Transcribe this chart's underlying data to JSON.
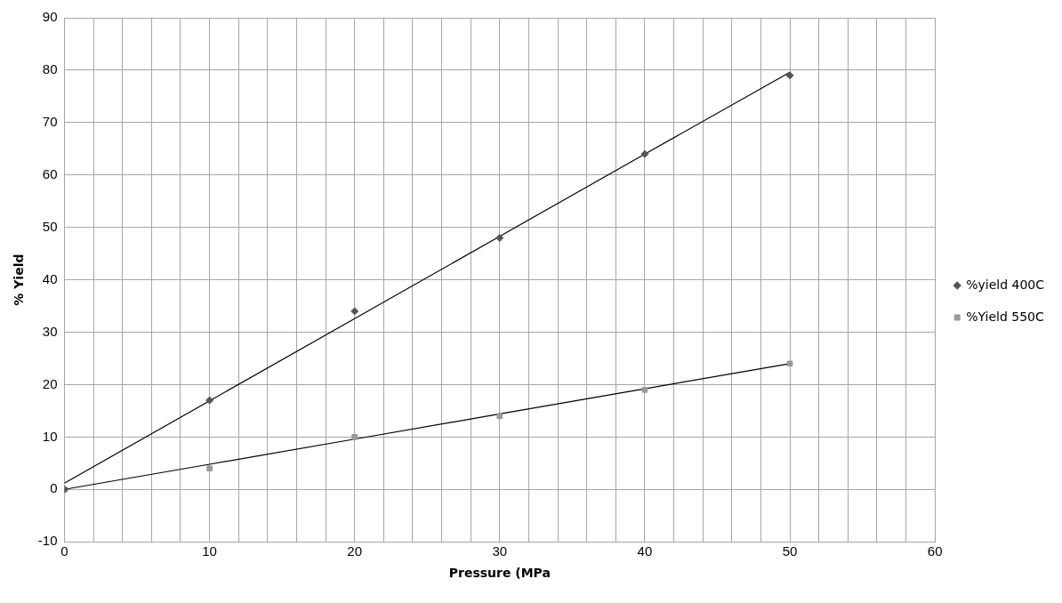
{
  "chart_data": {
    "type": "scatter",
    "xlabel": "Pressure (MPa",
    "ylabel": "% Yield",
    "x": [
      0,
      10,
      20,
      30,
      40,
      50
    ],
    "series": [
      {
        "name": "%yield 400C",
        "color": "#555555",
        "marker": "diamond",
        "values": [
          0,
          17,
          34,
          48,
          64,
          79
        ]
      },
      {
        "name": "%Yield 550C",
        "color": "#999999",
        "marker": "square",
        "values": [
          0,
          4,
          10,
          14,
          19,
          24
        ]
      },
      {
        "type": "line",
        "color": "#000000",
        "marker": "none",
        "line_style": "solid",
        "values": [
          1.2,
          16.9,
          32.6,
          48.3,
          64,
          79.6
        ]
      },
      {
        "type": "line",
        "color": "#000000",
        "marker": "none",
        "line_style": "solid",
        "values": [
          0,
          4.8,
          9.6,
          14.4,
          19.2,
          24
        ]
      }
    ],
    "xlim": [
      0,
      60
    ],
    "ylim": [
      -10,
      90
    ],
    "xticks": [
      0,
      {
        "value": 2,
        "label": null
      },
      {
        "value": 4,
        "label": null
      },
      {
        "value": 6,
        "label": null
      },
      {
        "value": 8,
        "label": null
      },
      10,
      {
        "value": 12,
        "label": null
      },
      {
        "value": 14,
        "label": null
      },
      {
        "value": 16,
        "label": null
      },
      {
        "value": 18,
        "label": null
      },
      20,
      {
        "value": 22,
        "label": null
      },
      {
        "value": 24,
        "label": null
      },
      {
        "value": 26,
        "label": null
      },
      {
        "value": 28,
        "label": null
      },
      30,
      {
        "value": 32,
        "label": null
      },
      {
        "value": 34,
        "label": null
      },
      {
        "value": 36,
        "label": null
      },
      {
        "value": 38,
        "label": null
      },
      40,
      {
        "value": 42,
        "label": null
      },
      {
        "value": 44,
        "label": null
      },
      {
        "value": 46,
        "label": null
      },
      {
        "value": 48,
        "label": null
      },
      50,
      {
        "value": 52,
        "label": null
      },
      {
        "value": 54,
        "label": null
      },
      {
        "value": 56,
        "label": null
      },
      {
        "value": 58,
        "label": null
      },
      60
    ],
    "yticks": [
      -10,
      0,
      10,
      20,
      30,
      40,
      50,
      60,
      70,
      80,
      90
    ],
    "grid": true,
    "legend": "right"
  }
}
